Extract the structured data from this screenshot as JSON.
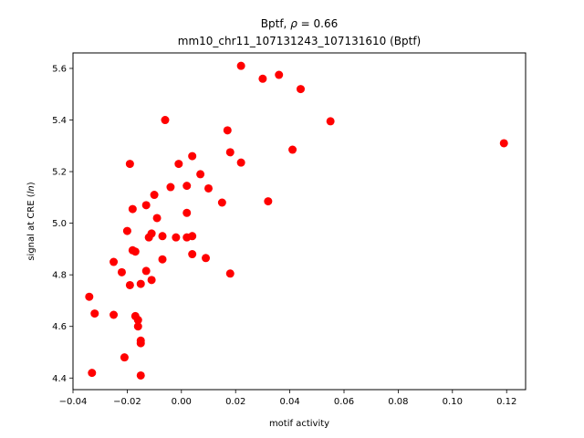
{
  "chart_data": {
    "type": "scatter",
    "title_line1": "Bptf, ",
    "title_rho": "ρ",
    "title_rho_value": " = 0.66",
    "title_line2": "mm10_chr11_107131243_107131610 (Bptf)",
    "xlabel": "motif activity",
    "ylabel_prefix": "signal at CRE (",
    "ylabel_italic": "ln",
    "ylabel_suffix": ")",
    "xlim": [
      -0.04,
      0.127
    ],
    "ylim": [
      4.355,
      5.66
    ],
    "xticks": [
      -0.04,
      -0.02,
      0.0,
      0.02,
      0.04,
      0.06,
      0.08,
      0.1,
      0.12
    ],
    "xtick_labels": [
      "−0.04",
      "−0.02",
      "0.00",
      "0.02",
      "0.04",
      "0.06",
      "0.08",
      "0.10",
      "0.12"
    ],
    "yticks": [
      4.4,
      4.6,
      4.8,
      5.0,
      5.2,
      5.4,
      5.6
    ],
    "ytick_labels": [
      "4.4",
      "4.6",
      "4.8",
      "5.0",
      "5.2",
      "5.4",
      "5.6"
    ],
    "marker_color": "#ff0000",
    "grid": false,
    "points": [
      {
        "x": 0.022,
        "y": 5.61
      },
      {
        "x": 0.036,
        "y": 5.575
      },
      {
        "x": 0.03,
        "y": 5.56
      },
      {
        "x": 0.044,
        "y": 5.52
      },
      {
        "x": -0.006,
        "y": 5.4
      },
      {
        "x": 0.055,
        "y": 5.395
      },
      {
        "x": 0.017,
        "y": 5.36
      },
      {
        "x": 0.119,
        "y": 5.31
      },
      {
        "x": 0.041,
        "y": 5.285
      },
      {
        "x": 0.018,
        "y": 5.275
      },
      {
        "x": 0.004,
        "y": 5.26
      },
      {
        "x": 0.022,
        "y": 5.235
      },
      {
        "x": -0.019,
        "y": 5.23
      },
      {
        "x": -0.001,
        "y": 5.23
      },
      {
        "x": 0.007,
        "y": 5.19
      },
      {
        "x": 0.002,
        "y": 5.145
      },
      {
        "x": -0.004,
        "y": 5.14
      },
      {
        "x": 0.01,
        "y": 5.135
      },
      {
        "x": -0.01,
        "y": 5.11
      },
      {
        "x": 0.015,
        "y": 5.08
      },
      {
        "x": 0.032,
        "y": 5.085
      },
      {
        "x": -0.013,
        "y": 5.07
      },
      {
        "x": -0.018,
        "y": 5.055
      },
      {
        "x": 0.002,
        "y": 5.04
      },
      {
        "x": -0.009,
        "y": 5.02
      },
      {
        "x": -0.02,
        "y": 4.97
      },
      {
        "x": -0.011,
        "y": 4.96
      },
      {
        "x": -0.012,
        "y": 4.945
      },
      {
        "x": -0.007,
        "y": 4.95
      },
      {
        "x": -0.002,
        "y": 4.945
      },
      {
        "x": 0.002,
        "y": 4.945
      },
      {
        "x": 0.004,
        "y": 4.95
      },
      {
        "x": -0.018,
        "y": 4.895
      },
      {
        "x": -0.017,
        "y": 4.89
      },
      {
        "x": 0.004,
        "y": 4.88
      },
      {
        "x": 0.009,
        "y": 4.865
      },
      {
        "x": -0.007,
        "y": 4.86
      },
      {
        "x": -0.025,
        "y": 4.85
      },
      {
        "x": -0.013,
        "y": 4.815
      },
      {
        "x": -0.022,
        "y": 4.81
      },
      {
        "x": 0.018,
        "y": 4.805
      },
      {
        "x": -0.011,
        "y": 4.78
      },
      {
        "x": -0.019,
        "y": 4.76
      },
      {
        "x": -0.015,
        "y": 4.765
      },
      {
        "x": -0.034,
        "y": 4.715
      },
      {
        "x": -0.032,
        "y": 4.65
      },
      {
        "x": -0.025,
        "y": 4.645
      },
      {
        "x": -0.017,
        "y": 4.64
      },
      {
        "x": -0.016,
        "y": 4.625
      },
      {
        "x": -0.016,
        "y": 4.6
      },
      {
        "x": -0.015,
        "y": 4.545
      },
      {
        "x": -0.015,
        "y": 4.535
      },
      {
        "x": -0.021,
        "y": 4.48
      },
      {
        "x": -0.033,
        "y": 4.42
      },
      {
        "x": -0.015,
        "y": 4.41
      }
    ]
  }
}
